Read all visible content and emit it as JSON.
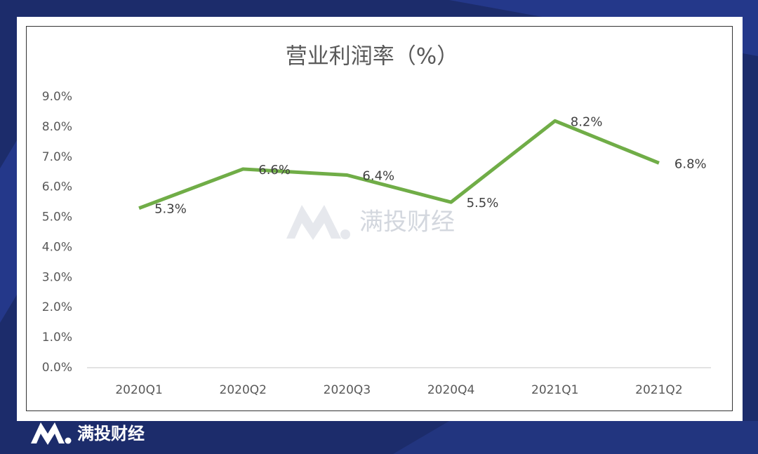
{
  "chart_data": {
    "type": "line",
    "title": "营业利润率（%）",
    "categories": [
      "2020Q1",
      "2020Q2",
      "2020Q3",
      "2020Q4",
      "2021Q1",
      "2021Q2"
    ],
    "series": [
      {
        "name": "营业利润率",
        "color": "#70ad47",
        "values": [
          5.3,
          6.6,
          6.4,
          5.5,
          8.2,
          6.8
        ],
        "value_labels": [
          "5.3%",
          "6.6%",
          "6.4%",
          "5.5%",
          "8.2%",
          "6.8%"
        ]
      }
    ],
    "ylim": [
      0,
      9
    ],
    "yticks": [
      {
        "value": 0,
        "label": "0.0%"
      },
      {
        "value": 1,
        "label": "1.0%"
      },
      {
        "value": 2,
        "label": "2.0%"
      },
      {
        "value": 3,
        "label": "3.0%"
      },
      {
        "value": 4,
        "label": "4.0%"
      },
      {
        "value": 5,
        "label": "5.0%"
      },
      {
        "value": 6,
        "label": "6.0%"
      },
      {
        "value": 7,
        "label": "7.0%"
      },
      {
        "value": 8,
        "label": "8.0%"
      },
      {
        "value": 9,
        "label": "9.0%"
      }
    ],
    "grid": false,
    "watermark": "满投财经",
    "brand": "满投财经"
  }
}
